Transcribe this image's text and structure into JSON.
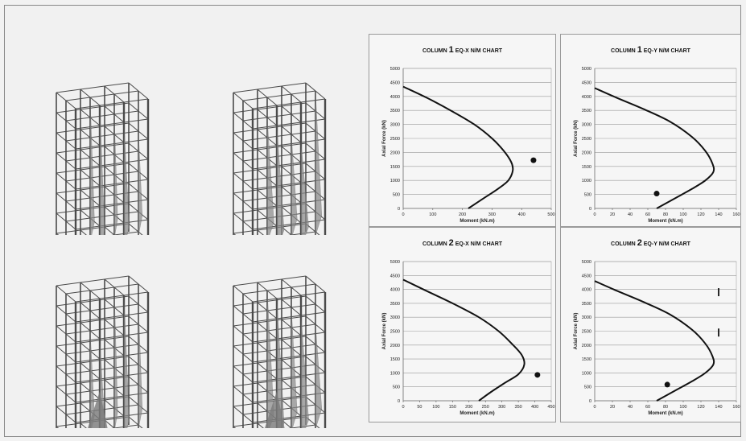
{
  "colors": {
    "curve": "#111111",
    "grid": "#9a9a9a",
    "frame": "#888888",
    "structure": "#4a4a4a"
  },
  "models": [
    {
      "name": "model-top-left"
    },
    {
      "name": "model-top-right"
    },
    {
      "name": "model-bottom-left"
    },
    {
      "name": "model-bottom-right"
    }
  ],
  "chart_data": [
    {
      "type": "line",
      "title_prefix": "COLUMN",
      "title_num": "1",
      "title_suffix": "EQ-X N/M CHART",
      "xlabel": "Moment (kN.m)",
      "ylabel": "Axial Force (kN)",
      "xlim": [
        0,
        500
      ],
      "ylim": [
        0,
        5000
      ],
      "xticks": [
        "0",
        "100",
        "200",
        "300",
        "400",
        "500"
      ],
      "yticks": [
        "0",
        "500",
        "1000",
        "1500",
        "2000",
        "2500",
        "3000",
        "3500",
        "4000",
        "4500",
        "5000"
      ],
      "xtick_vals": [
        0,
        100,
        200,
        300,
        400,
        500
      ],
      "curve": [
        [
          0,
          4350
        ],
        [
          80,
          3950
        ],
        [
          160,
          3500
        ],
        [
          240,
          3000
        ],
        [
          300,
          2500
        ],
        [
          340,
          2050
        ],
        [
          365,
          1650
        ],
        [
          370,
          1350
        ],
        [
          355,
          1000
        ],
        [
          320,
          700
        ],
        [
          270,
          350
        ],
        [
          220,
          0
        ]
      ],
      "points": [
        {
          "x": 440,
          "y": 1720,
          "marker": "dot"
        }
      ]
    },
    {
      "type": "line",
      "title_prefix": "COLUMN",
      "title_num": "1",
      "title_suffix": "EQ-Y N/M CHART",
      "xlabel": "Moment (kN.m)",
      "ylabel": "Axial Force (kN)",
      "xlim": [
        0,
        160
      ],
      "ylim": [
        0,
        5000
      ],
      "xticks": [
        "0",
        "20",
        "40",
        "60",
        "80",
        "100",
        "120",
        "140",
        "160"
      ],
      "yticks": [
        "0",
        "500",
        "1000",
        "1500",
        "2000",
        "2500",
        "3000",
        "3500",
        "4000",
        "4500",
        "5000"
      ],
      "xtick_vals": [
        0,
        20,
        40,
        60,
        80,
        100,
        120,
        140,
        160
      ],
      "curve": [
        [
          0,
          4300
        ],
        [
          25,
          3950
        ],
        [
          55,
          3550
        ],
        [
          85,
          3100
        ],
        [
          110,
          2550
        ],
        [
          125,
          2050
        ],
        [
          133,
          1600
        ],
        [
          134,
          1300
        ],
        [
          125,
          1000
        ],
        [
          110,
          700
        ],
        [
          90,
          350
        ],
        [
          70,
          0
        ]
      ],
      "points": [
        {
          "x": 70,
          "y": 530,
          "marker": "dot"
        }
      ]
    },
    {
      "type": "line",
      "title_prefix": "COLUMN",
      "title_num": "2",
      "title_suffix": "EQ-X N/M CHART",
      "xlabel": "Moment (kN.m)",
      "ylabel": "Axial Force (kN)",
      "xlim": [
        0,
        450
      ],
      "ylim": [
        0,
        5000
      ],
      "xticks": [
        "0",
        "50",
        "100",
        "150",
        "200",
        "250",
        "300",
        "350",
        "400",
        "450"
      ],
      "yticks": [
        "0",
        "500",
        "1000",
        "1500",
        "2000",
        "2500",
        "3000",
        "3500",
        "4000",
        "4500",
        "5000"
      ],
      "xtick_vals": [
        0,
        50,
        100,
        150,
        200,
        250,
        300,
        350,
        400,
        450
      ],
      "curve": [
        [
          0,
          4350
        ],
        [
          70,
          3950
        ],
        [
          150,
          3500
        ],
        [
          230,
          3000
        ],
        [
          290,
          2500
        ],
        [
          330,
          2050
        ],
        [
          360,
          1650
        ],
        [
          368,
          1300
        ],
        [
          350,
          950
        ],
        [
          310,
          650
        ],
        [
          265,
          300
        ],
        [
          230,
          0
        ]
      ],
      "points": [
        {
          "x": 408,
          "y": 930,
          "marker": "dot"
        }
      ]
    },
    {
      "type": "line",
      "title_prefix": "COLUMN",
      "title_num": "2",
      "title_suffix": "EQ-Y N/M CHART",
      "xlabel": "Moment (kN.m)",
      "ylabel": "Axial Force (kN)",
      "xlim": [
        0,
        160
      ],
      "ylim": [
        0,
        5000
      ],
      "xticks": [
        "0",
        "20",
        "40",
        "60",
        "80",
        "100",
        "120",
        "140",
        "160"
      ],
      "yticks": [
        "0",
        "500",
        "1000",
        "1500",
        "2000",
        "2500",
        "3000",
        "3500",
        "4000",
        "4500",
        "5000"
      ],
      "xtick_vals": [
        0,
        20,
        40,
        60,
        80,
        100,
        120,
        140,
        160
      ],
      "curve": [
        [
          0,
          4300
        ],
        [
          25,
          3950
        ],
        [
          55,
          3550
        ],
        [
          85,
          3100
        ],
        [
          110,
          2550
        ],
        [
          125,
          2050
        ],
        [
          133,
          1600
        ],
        [
          134,
          1300
        ],
        [
          125,
          1000
        ],
        [
          110,
          700
        ],
        [
          90,
          350
        ],
        [
          70,
          0
        ]
      ],
      "points": [
        {
          "x": 82,
          "y": 580,
          "marker": "dot"
        },
        {
          "x": 140,
          "y": 2450,
          "marker": "bar"
        },
        {
          "x": 140,
          "y": 3900,
          "marker": "bar"
        }
      ]
    }
  ]
}
